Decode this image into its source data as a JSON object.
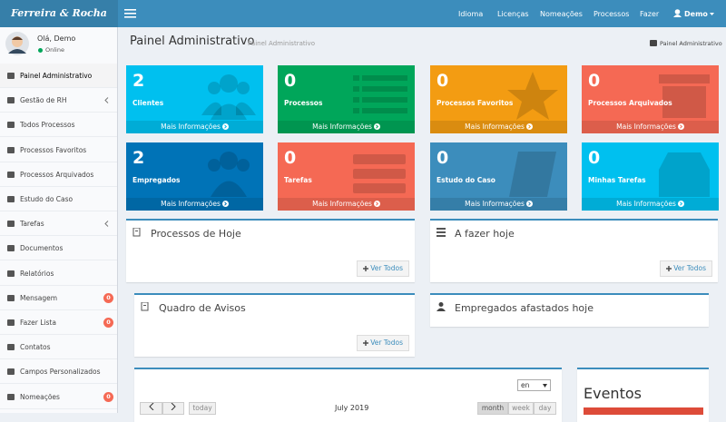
{
  "header": {
    "logo": "Ferreira & Rocha Adv",
    "nav": [
      "Idioma",
      "Licenças",
      "Nomeações",
      "Processos",
      "Fazer"
    ],
    "user": "Demo"
  },
  "sidebar": {
    "greeting": "Olá, Demo",
    "status": "Online",
    "menu": [
      {
        "label": "Painel Administrativo"
      },
      {
        "label": "Gestão de RH",
        "expand": true
      },
      {
        "label": "Todos Processos"
      },
      {
        "label": "Processos Favoritos"
      },
      {
        "label": "Processos Arquivados"
      },
      {
        "label": "Estudo do Caso"
      },
      {
        "label": "Tarefas",
        "expand": true
      },
      {
        "label": "Documentos"
      },
      {
        "label": "Relatórios"
      },
      {
        "label": "Mensagem",
        "badge": 0
      },
      {
        "label": "Fazer Lista",
        "badge": 0
      },
      {
        "label": "Contatos"
      },
      {
        "label": "Campos Personalizados"
      },
      {
        "label": "Nomeações",
        "badge": 0
      }
    ]
  },
  "content": {
    "title": "Painel Administrativo",
    "subtitle": "Painel Administrativo",
    "breadcrumb": "Painel Administrativo",
    "stats": [
      {
        "value": 2,
        "label": "Clientes",
        "link": "Mais Informações"
      },
      {
        "value": 0,
        "label": "Processos",
        "link": "Mais Informações"
      },
      {
        "value": 0,
        "label": "Processos Favoritos",
        "link": "Mais Informações"
      },
      {
        "value": 0,
        "label": "Processos Arquivados",
        "link": "Mais Informações"
      },
      {
        "value": 2,
        "label": "Empregados",
        "link": "Mais Informações"
      },
      {
        "value": 0,
        "label": "Tarefas",
        "link": "Mais Informações"
      },
      {
        "value": 0,
        "label": "Estudo do Caso",
        "link": "Mais Informações"
      },
      {
        "value": 0,
        "label": "Minhas Tarefas",
        "link": "Mais Informações"
      }
    ],
    "panels": [
      {
        "title": "Processos de Hoje",
        "button": "Ver Todos"
      },
      {
        "title": "A fazer hoje",
        "button": "Ver Todos"
      },
      {
        "title": "Quadro de Avisos",
        "button": "Ver Todos"
      },
      {
        "title": "Empregados afastados hoje"
      }
    ],
    "calendar": {
      "language": "en",
      "today": "today",
      "month_label": "July 2019",
      "views": [
        "month",
        "week",
        "day"
      ]
    },
    "events": {
      "title": "Eventos"
    }
  }
}
